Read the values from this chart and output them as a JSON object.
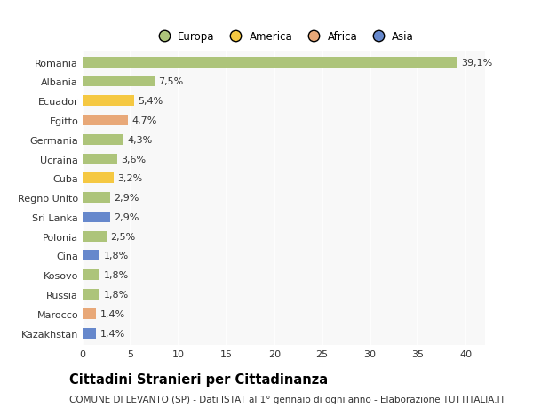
{
  "countries": [
    "Romania",
    "Albania",
    "Ecuador",
    "Egitto",
    "Germania",
    "Ucraina",
    "Cuba",
    "Regno Unito",
    "Sri Lanka",
    "Polonia",
    "Cina",
    "Kosovo",
    "Russia",
    "Marocco",
    "Kazakhstan"
  ],
  "values": [
    39.1,
    7.5,
    5.4,
    4.7,
    4.3,
    3.6,
    3.2,
    2.9,
    2.9,
    2.5,
    1.8,
    1.8,
    1.8,
    1.4,
    1.4
  ],
  "labels": [
    "39,1%",
    "7,5%",
    "5,4%",
    "4,7%",
    "4,3%",
    "3,6%",
    "3,2%",
    "2,9%",
    "2,9%",
    "2,5%",
    "1,8%",
    "1,8%",
    "1,8%",
    "1,4%",
    "1,4%"
  ],
  "continents": [
    "Europa",
    "Europa",
    "America",
    "Africa",
    "Europa",
    "Europa",
    "America",
    "Europa",
    "Asia",
    "Europa",
    "Asia",
    "Europa",
    "Europa",
    "Africa",
    "Asia"
  ],
  "continent_colors": {
    "Europa": "#adc47a",
    "America": "#f5c842",
    "Africa": "#e8a878",
    "Asia": "#6688cc"
  },
  "legend_items": [
    "Europa",
    "America",
    "Africa",
    "Asia"
  ],
  "legend_colors": [
    "#adc47a",
    "#f5c842",
    "#e8a878",
    "#6688cc"
  ],
  "xlim": [
    0,
    42
  ],
  "xticks": [
    0,
    5,
    10,
    15,
    20,
    25,
    30,
    35,
    40
  ],
  "title": "Cittadini Stranieri per Cittadinanza",
  "subtitle": "COMUNE DI LEVANTO (SP) - Dati ISTAT al 1° gennaio di ogni anno - Elaborazione TUTTITALIA.IT",
  "background_color": "#ffffff",
  "plot_bg_color": "#f8f8f8",
  "bar_height": 0.55,
  "grid_color": "#ffffff",
  "text_color": "#333333",
  "label_fontsize": 8,
  "tick_fontsize": 8,
  "title_fontsize": 10.5,
  "subtitle_fontsize": 7.5
}
